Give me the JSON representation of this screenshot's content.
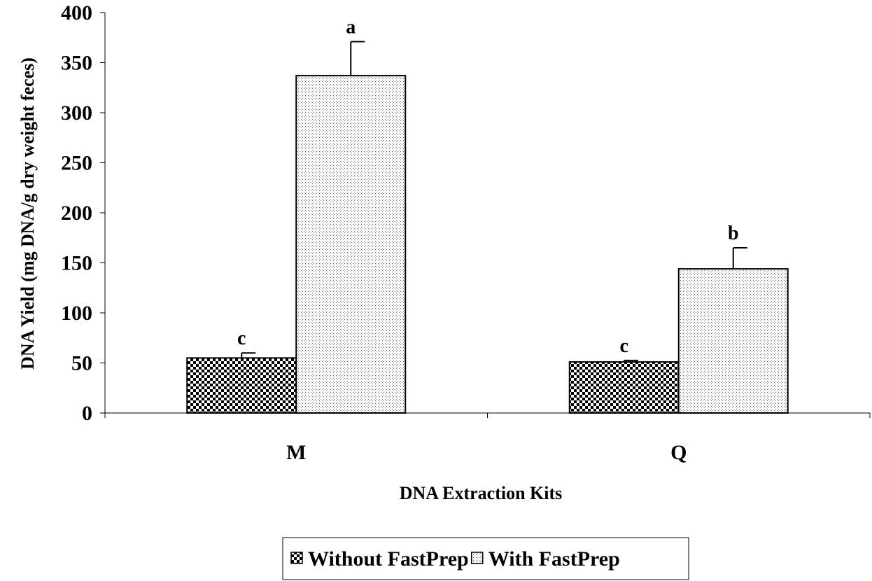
{
  "chart_data": {
    "type": "bar",
    "categories": [
      "M",
      "Q"
    ],
    "series": [
      {
        "name": "Without FastPrep",
        "values": [
          55,
          51
        ],
        "errors": [
          5,
          1.5
        ],
        "letters": [
          "c",
          "c"
        ],
        "pattern": "checker"
      },
      {
        "name": "With FastPrep",
        "values": [
          337,
          144
        ],
        "errors": [
          34,
          21
        ],
        "letters": [
          "a",
          "b"
        ],
        "pattern": "dots"
      }
    ],
    "xlabel": "DNA Extraction Kits",
    "ylabel": "DNA Yield (mg DNA/g dry weight feces)",
    "ylim": [
      0,
      400
    ],
    "yticks": [
      0,
      50,
      100,
      150,
      200,
      250,
      300,
      350,
      400
    ],
    "grid": false,
    "legend_position": "bottom-center"
  }
}
